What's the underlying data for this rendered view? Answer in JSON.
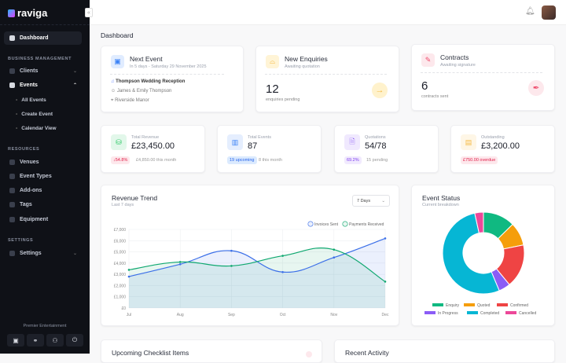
{
  "app": {
    "name": "raviga",
    "collapse_icon": "«"
  },
  "sidebar": {
    "dashboard": "Dashboard",
    "sections": {
      "business": "BUSINESS MANAGEMENT",
      "resources": "RESOURCES",
      "settings": "SETTINGS"
    },
    "business": [
      {
        "label": "Clients",
        "chev": "⌄"
      },
      {
        "label": "Events",
        "chev": "⌃"
      }
    ],
    "events_sub": [
      "All Events",
      "Create Event",
      "Calendar View"
    ],
    "resources": [
      "Venues",
      "Event Types",
      "Add-ons",
      "Tags",
      "Equipment"
    ],
    "settings": {
      "label": "Settings",
      "chev": "⌄"
    },
    "company": "Premier Entertainment",
    "footer_icons": [
      "calendar-icon",
      "link-icon",
      "users-icon",
      "power-icon"
    ]
  },
  "page": {
    "title": "Dashboard"
  },
  "next_event": {
    "title": "Next Event",
    "subtitle": "In 5 days - Saturday 29 November 2025",
    "event": "Thompson Wedding Reception",
    "client": "James & Emily Thompson",
    "venue": "Riverside Manor"
  },
  "enquiries": {
    "title": "New Enquiries",
    "subtitle": "Awaiting quotation",
    "count": "12",
    "label": "enquiries pending"
  },
  "contracts": {
    "title": "Contracts",
    "subtitle": "Awaiting signature",
    "count": "6",
    "label": "contracts sent"
  },
  "stats": [
    {
      "label": "Total Revenue",
      "value": "£23,450.00",
      "badge": "↓54.8%",
      "note": "£4,850.00 this month",
      "color": "#22c55e",
      "badge_bg": "#fde8ec",
      "badge_fg": "#e11d48"
    },
    {
      "label": "Total Events",
      "value": "87",
      "badge": "19 upcoming",
      "note": "8 this month",
      "color": "#3b82f6",
      "badge_bg": "#dbeafe",
      "badge_fg": "#2563eb"
    },
    {
      "label": "Quotations",
      "value": "54/78",
      "badge": "69.2%",
      "note": "15 pending",
      "color": "#8b5cf6",
      "badge_bg": "#f1eafe",
      "badge_fg": "#7c3aed"
    },
    {
      "label": "Outstanding",
      "value": "£3,200.00",
      "badge": "£750.00 overdue",
      "note": "",
      "color": "#f5b942",
      "badge_bg": "#fde8ec",
      "badge_fg": "#e11d48"
    }
  ],
  "revenue": {
    "title": "Revenue Trend",
    "subtitle": "Last 7 days",
    "range": "7 Days"
  },
  "chart_data": [
    {
      "type": "line",
      "title": "Revenue Trend",
      "x": [
        "Jul",
        "Aug",
        "Sep",
        "Oct",
        "Nov",
        "Dec"
      ],
      "ylim": [
        0,
        7000
      ],
      "yticks": [
        "£0",
        "£1,000",
        "£2,000",
        "£3,000",
        "£4,000",
        "£5,000",
        "£6,000",
        "£7,000"
      ],
      "grid": true,
      "legend": "top-right",
      "series": [
        {
          "name": "Invoices Sent",
          "color": "#3b6fe8",
          "values": [
            2800,
            3900,
            5100,
            3200,
            4500,
            6200
          ]
        },
        {
          "name": "Payments Received",
          "color": "#10a870",
          "values": [
            3400,
            4100,
            3750,
            4650,
            5200,
            2350
          ]
        }
      ]
    },
    {
      "type": "pie",
      "title": "Event Status",
      "subtitle": "Current breakdown",
      "legend": "bottom",
      "categories": [
        "Enquiry",
        "Quoted",
        "Confirmed",
        "In Progress",
        "Completed",
        "Cancelled"
      ],
      "values": [
        11,
        8,
        15,
        4,
        46,
        3
      ],
      "colors": [
        "#10b981",
        "#f59e0b",
        "#ef4444",
        "#8b5cf6",
        "#06b6d4",
        "#ec4899"
      ]
    }
  ],
  "bottom": {
    "checklist": "Upcoming Checklist Items",
    "activity": "Recent Activity"
  }
}
